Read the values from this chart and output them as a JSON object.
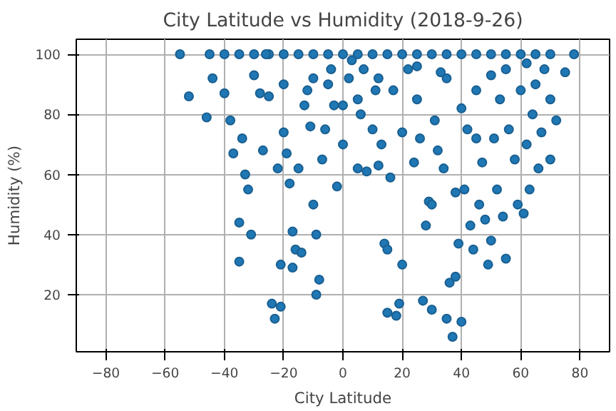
{
  "chart_data": {
    "type": "scatter",
    "title": "City Latitude vs Humidity (2018-9-26)",
    "xlabel": "City Latitude",
    "ylabel": "Humidity (%)",
    "xlim": [
      -90,
      90
    ],
    "ylim": [
      1,
      105
    ],
    "xticks": [
      -80,
      -60,
      -40,
      -20,
      0,
      20,
      40,
      60,
      80
    ],
    "yticks": [
      20,
      40,
      60,
      80,
      100
    ],
    "grid": true,
    "marker": "circle",
    "series": [
      {
        "color": "#1f77b4",
        "x": [
          -55,
          -45,
          -40,
          -35,
          -30,
          -25,
          -20,
          -15,
          -10,
          -5,
          0,
          5,
          10,
          15,
          20,
          25,
          30,
          35,
          40,
          45,
          50,
          55,
          60,
          65,
          70,
          78,
          -52,
          -46,
          -44,
          -40,
          -38,
          -37,
          -35,
          -35,
          -34,
          -33,
          -32,
          -31,
          -30,
          -28,
          -27,
          -25,
          -24,
          -23,
          -22,
          -21,
          -21,
          -20,
          -19,
          -18,
          -17,
          -17,
          -16,
          -15,
          -14,
          -13,
          -12,
          -11,
          -10,
          -9,
          -9,
          -8,
          -7,
          -6,
          -5,
          -4,
          -3,
          -2,
          0,
          2,
          3,
          5,
          6,
          7,
          8,
          10,
          11,
          12,
          13,
          14,
          15,
          15,
          16,
          17,
          18,
          19,
          20,
          20,
          22,
          24,
          25,
          26,
          27,
          28,
          29,
          30,
          30,
          31,
          32,
          33,
          34,
          35,
          36,
          37,
          38,
          38,
          39,
          40,
          40,
          41,
          42,
          43,
          44,
          45,
          46,
          47,
          48,
          49,
          50,
          51,
          52,
          53,
          54,
          55,
          56,
          58,
          59,
          60,
          61,
          62,
          63,
          64,
          65,
          66,
          67,
          68,
          70,
          72,
          75,
          -26,
          -10,
          5,
          12,
          35,
          45,
          55,
          -20,
          0,
          25,
          50,
          62,
          70
        ],
        "values": [
          100,
          100,
          100,
          100,
          100,
          100,
          100,
          100,
          100,
          100,
          100,
          100,
          100,
          100,
          100,
          100,
          100,
          100,
          100,
          100,
          100,
          100,
          100,
          100,
          100,
          100,
          86,
          79,
          92,
          87,
          78,
          67,
          44,
          31,
          72,
          60,
          55,
          40,
          93,
          87,
          68,
          86,
          17,
          12,
          62,
          30,
          16,
          74,
          67,
          57,
          41,
          29,
          35,
          62,
          34,
          83,
          88,
          76,
          50,
          20,
          40,
          25,
          65,
          75,
          90,
          95,
          83,
          56,
          70,
          92,
          98,
          62,
          80,
          95,
          61,
          75,
          88,
          63,
          70,
          37,
          35,
          14,
          59,
          88,
          13,
          17,
          74,
          30,
          95,
          64,
          85,
          72,
          18,
          43,
          51,
          15,
          50,
          78,
          68,
          94,
          62,
          12,
          24,
          6,
          26,
          54,
          37,
          11,
          82,
          55,
          75,
          43,
          35,
          88,
          50,
          64,
          45,
          30,
          38,
          72,
          55,
          85,
          46,
          32,
          75,
          65,
          50,
          88,
          47,
          70,
          55,
          80,
          90,
          62,
          74,
          95,
          85,
          78,
          94,
          100,
          92,
          85,
          92,
          92,
          72,
          95,
          90,
          83,
          96,
          93,
          97,
          65
        ]
      }
    ]
  }
}
